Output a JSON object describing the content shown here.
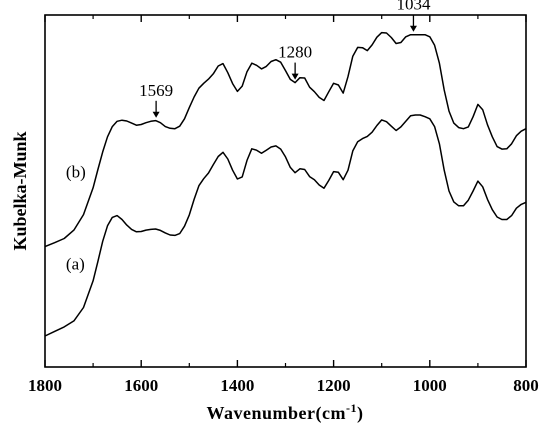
{
  "chart_data": {
    "type": "line",
    "xlabel": "Wavenumber(cm",
    "xlabel_superscript": "-1",
    "xlabel_suffix": ")",
    "ylabel": "Kubelka-Munk",
    "xlim": [
      1800,
      800
    ],
    "x_reversed": true,
    "ylim": [
      0,
      1
    ],
    "y_ticks_shown": false,
    "x_ticks": [
      1800,
      1600,
      1400,
      1200,
      1000,
      800
    ],
    "grid": false,
    "legend": "none",
    "line_color": "#000000",
    "series": [
      {
        "label": "(b)",
        "x": [
          1800,
          1780,
          1760,
          1740,
          1720,
          1700,
          1690,
          1680,
          1670,
          1660,
          1650,
          1640,
          1630,
          1620,
          1610,
          1600,
          1590,
          1580,
          1570,
          1560,
          1550,
          1540,
          1530,
          1520,
          1510,
          1500,
          1490,
          1480,
          1470,
          1460,
          1450,
          1440,
          1430,
          1420,
          1410,
          1400,
          1390,
          1380,
          1370,
          1360,
          1350,
          1340,
          1330,
          1320,
          1310,
          1300,
          1290,
          1280,
          1270,
          1260,
          1250,
          1240,
          1230,
          1220,
          1210,
          1200,
          1190,
          1180,
          1170,
          1160,
          1150,
          1140,
          1130,
          1120,
          1110,
          1100,
          1090,
          1080,
          1070,
          1060,
          1050,
          1040,
          1030,
          1020,
          1010,
          1000,
          990,
          980,
          970,
          960,
          950,
          940,
          930,
          920,
          910,
          900,
          890,
          880,
          870,
          860,
          850,
          840,
          830,
          820,
          810,
          800
        ],
        "y": [
          0.342,
          0.353,
          0.365,
          0.389,
          0.433,
          0.509,
          0.561,
          0.611,
          0.654,
          0.683,
          0.698,
          0.701,
          0.699,
          0.693,
          0.687,
          0.689,
          0.694,
          0.698,
          0.7,
          0.694,
          0.683,
          0.678,
          0.677,
          0.684,
          0.705,
          0.737,
          0.767,
          0.792,
          0.806,
          0.818,
          0.833,
          0.855,
          0.862,
          0.836,
          0.805,
          0.783,
          0.798,
          0.839,
          0.863,
          0.857,
          0.847,
          0.854,
          0.868,
          0.873,
          0.866,
          0.842,
          0.817,
          0.808,
          0.822,
          0.821,
          0.795,
          0.782,
          0.766,
          0.757,
          0.782,
          0.806,
          0.801,
          0.778,
          0.825,
          0.883,
          0.908,
          0.907,
          0.899,
          0.915,
          0.937,
          0.95,
          0.949,
          0.936,
          0.919,
          0.922,
          0.938,
          0.944,
          0.944,
          0.944,
          0.944,
          0.938,
          0.914,
          0.863,
          0.787,
          0.727,
          0.693,
          0.68,
          0.677,
          0.682,
          0.711,
          0.746,
          0.731,
          0.688,
          0.654,
          0.626,
          0.619,
          0.62,
          0.634,
          0.657,
          0.67,
          0.677
        ],
        "annotations": [
          {
            "x": 1569,
            "label": "1569"
          },
          {
            "x": 1280,
            "label": "1280"
          },
          {
            "x": 1034,
            "label": "1034"
          }
        ]
      },
      {
        "label": "(a)",
        "x": [
          1800,
          1780,
          1760,
          1740,
          1720,
          1700,
          1690,
          1680,
          1670,
          1660,
          1650,
          1640,
          1630,
          1620,
          1610,
          1600,
          1590,
          1580,
          1570,
          1560,
          1550,
          1540,
          1530,
          1520,
          1510,
          1500,
          1490,
          1480,
          1470,
          1460,
          1450,
          1440,
          1430,
          1420,
          1410,
          1400,
          1390,
          1380,
          1370,
          1360,
          1350,
          1340,
          1330,
          1320,
          1310,
          1300,
          1290,
          1280,
          1270,
          1260,
          1250,
          1240,
          1230,
          1220,
          1210,
          1200,
          1190,
          1180,
          1170,
          1160,
          1150,
          1140,
          1130,
          1120,
          1110,
          1100,
          1090,
          1080,
          1070,
          1060,
          1050,
          1040,
          1030,
          1020,
          1010,
          1000,
          990,
          980,
          970,
          960,
          950,
          940,
          930,
          920,
          910,
          900,
          890,
          880,
          870,
          860,
          850,
          840,
          830,
          820,
          810,
          800
        ],
        "y": [
          0.088,
          0.101,
          0.114,
          0.131,
          0.169,
          0.245,
          0.3,
          0.357,
          0.401,
          0.425,
          0.43,
          0.419,
          0.403,
          0.391,
          0.384,
          0.385,
          0.389,
          0.391,
          0.392,
          0.388,
          0.381,
          0.375,
          0.374,
          0.379,
          0.4,
          0.432,
          0.476,
          0.515,
          0.535,
          0.551,
          0.575,
          0.598,
          0.61,
          0.591,
          0.559,
          0.534,
          0.54,
          0.587,
          0.62,
          0.616,
          0.607,
          0.616,
          0.625,
          0.628,
          0.619,
          0.597,
          0.567,
          0.552,
          0.563,
          0.561,
          0.541,
          0.532,
          0.517,
          0.508,
          0.53,
          0.555,
          0.553,
          0.532,
          0.559,
          0.614,
          0.64,
          0.649,
          0.655,
          0.667,
          0.686,
          0.702,
          0.697,
          0.684,
          0.672,
          0.682,
          0.698,
          0.714,
          0.716,
          0.716,
          0.711,
          0.705,
          0.683,
          0.634,
          0.559,
          0.5,
          0.469,
          0.458,
          0.458,
          0.474,
          0.5,
          0.528,
          0.512,
          0.476,
          0.447,
          0.426,
          0.419,
          0.419,
          0.43,
          0.451,
          0.462,
          0.468
        ]
      }
    ]
  }
}
